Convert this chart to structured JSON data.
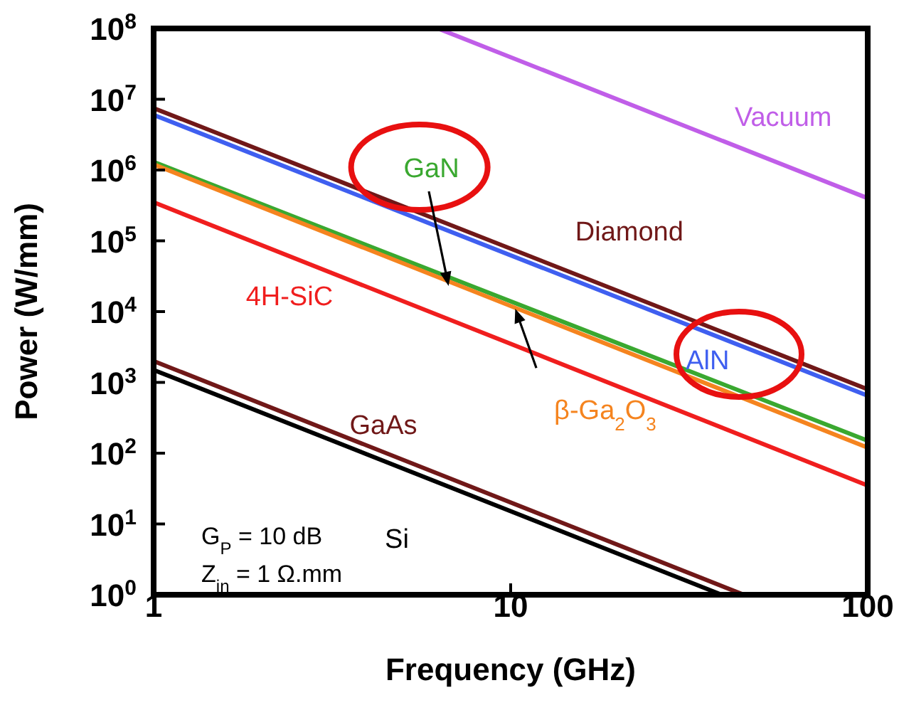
{
  "chart_data": {
    "type": "line",
    "xlabel": "Frequency (GHz)",
    "ylabel": "Power (W/mm)",
    "log": "xy",
    "grid": false,
    "marker": "none",
    "line_style": "solid",
    "xlim": [
      1,
      100
    ],
    "xticks": [
      1,
      10,
      100
    ],
    "ylim": [
      1,
      100000000
    ],
    "yticks": [
      {
        "value": 1,
        "label": "10$^{0}$"
      },
      {
        "value": 10,
        "label": "10$^{1}$"
      },
      {
        "value": 100,
        "label": "10$^{2}$"
      },
      {
        "value": 1000,
        "label": "10$^{3}$"
      },
      {
        "value": 10000,
        "label": "10$^{4}$"
      },
      {
        "value": 100000,
        "label": "10$^{5}$"
      },
      {
        "value": 1000000,
        "label": "10$^{6}$"
      },
      {
        "value": 10000000,
        "label": "10$^{7}$"
      },
      {
        "value": 100000000,
        "label": "10$^{8}$"
      }
    ],
    "series": [
      {
        "name": "Vacuum",
        "color": "#c05ee8",
        "x": [
          6.25,
          100
        ],
        "values": [
          100000000,
          400000
        ]
      },
      {
        "name": "Diamond",
        "color": "#701818",
        "x": [
          1,
          100
        ],
        "values": [
          7500000,
          800
        ]
      },
      {
        "name": "AlN",
        "color": "#3f5ff0",
        "x": [
          1,
          100
        ],
        "values": [
          6000000,
          650
        ]
      },
      {
        "name": "GaN",
        "color": "#3aa830",
        "x": [
          1,
          100
        ],
        "values": [
          1300000,
          150
        ]
      },
      {
        "name": "β-Ga$_{2}$O$_{3}$",
        "color": "#f5841f",
        "x": [
          1,
          100
        ],
        "values": [
          1200000,
          120
        ]
      },
      {
        "name": "4H-SiC",
        "color": "#f01e1e",
        "x": [
          1,
          100
        ],
        "values": [
          350000,
          35
        ]
      },
      {
        "name": "GaAs",
        "color": "#701818",
        "x": [
          1,
          45
        ],
        "values": [
          2000,
          1
        ]
      },
      {
        "name": "Si",
        "color": "#000000",
        "x": [
          1,
          39
        ],
        "values": [
          1500,
          1
        ]
      }
    ],
    "annotations": [
      "G$_{P}$ = 10 dB",
      "Z$_{in}$ = 1 Ω.mm"
    ]
  }
}
